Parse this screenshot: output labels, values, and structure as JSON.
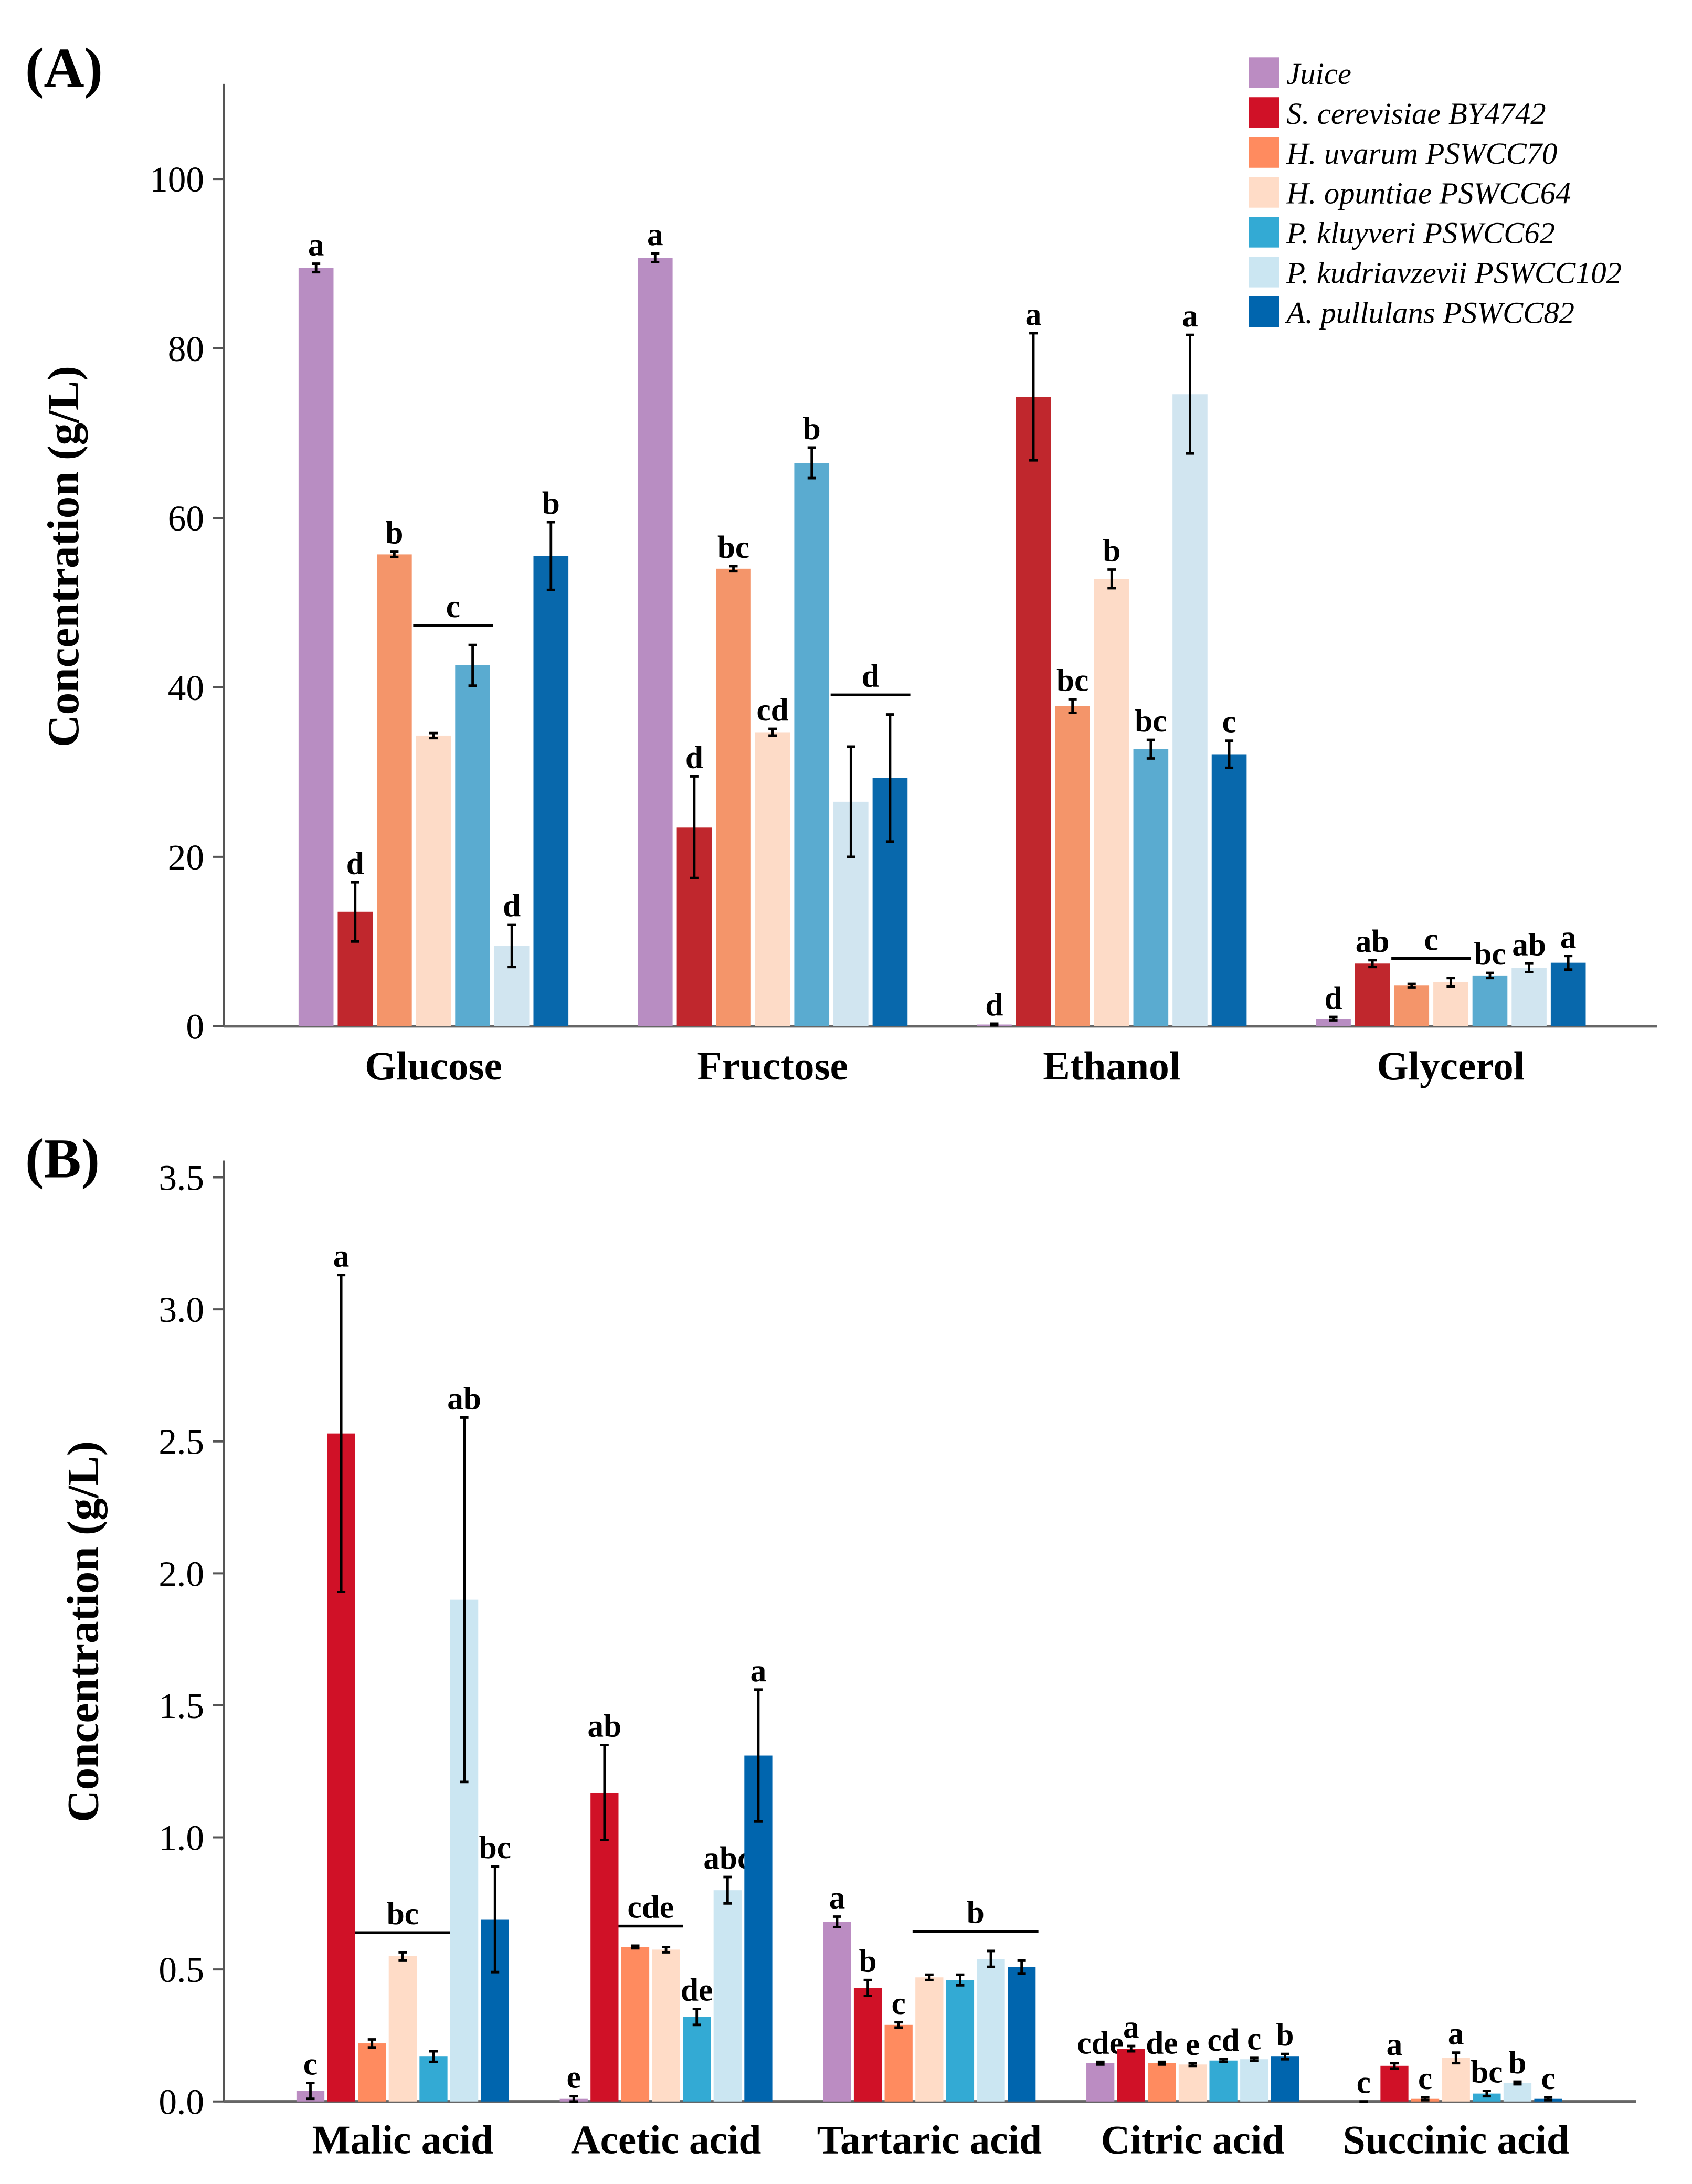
{
  "legend": [
    {
      "label": "Juice"
    },
    {
      "label": "S. cerevisiae BY4742"
    },
    {
      "label": "H. uvarum PSWCC70"
    },
    {
      "label": "H. opuntiae PSWCC64"
    },
    {
      "label": "P. kluyveri PSWCC62"
    },
    {
      "label": "P. kudriavzevii PSWCC102"
    },
    {
      "label": "A. pullulans PSWCC82"
    }
  ],
  "chart_data": [
    {
      "type": "bar",
      "panel_label": "(A)",
      "ylabel": "Concentration (g/L)",
      "xlabel": "",
      "ylim": [
        0,
        110
      ],
      "yticks": [
        "0",
        "20",
        "40",
        "60",
        "80",
        "100"
      ],
      "ytick_values": [
        0,
        20,
        40,
        60,
        80,
        100
      ],
      "grid": false,
      "legend_position": "top-right",
      "colors": [
        "#b88dc2",
        "#c0272d",
        "#f4956a",
        "#fddbc7",
        "#5aabd0",
        "#d1e5f0",
        "#0868ac"
      ],
      "categories": [
        "Glucose",
        "Fructose",
        "Ethanol",
        "Glycerol"
      ],
      "series_names": [
        "Juice",
        "S. cerevisiae BY4742",
        "H. uvarum PSWCC70",
        "H. opuntiae PSWCC64",
        "P. kluyveri PSWCC62",
        "P. kudriavzevii PSWCC102",
        "A. pullulans PSWCC82"
      ],
      "values": [
        [
          89.5,
          13.5,
          55.7,
          34.3,
          42.6,
          9.5,
          55.5
        ],
        [
          90.7,
          23.5,
          54.0,
          34.7,
          66.5,
          26.5,
          29.3
        ],
        [
          0.2,
          74.3,
          37.8,
          52.8,
          32.7,
          74.6,
          32.1
        ],
        [
          0.9,
          7.4,
          4.8,
          5.2,
          6.0,
          6.9,
          7.5
        ]
      ],
      "errors": [
        [
          0.5,
          3.5,
          0.3,
          0.3,
          2.4,
          2.5,
          4.0
        ],
        [
          0.5,
          6.0,
          0.3,
          0.4,
          1.8,
          6.5,
          7.5
        ],
        [
          0.1,
          7.5,
          0.8,
          1.1,
          1.1,
          7.0,
          1.6
        ],
        [
          0.2,
          0.4,
          0.2,
          0.5,
          0.3,
          0.5,
          0.8
        ]
      ],
      "letters": [
        [
          "a",
          "d",
          "b",
          "",
          "",
          "d",
          "b"
        ],
        [
          "a",
          "d",
          "bc",
          "cd",
          "b",
          "",
          ""
        ],
        [
          "d",
          "a",
          "bc",
          "b",
          "bc",
          "a",
          "c"
        ],
        [
          "d",
          "ab",
          "",
          "",
          "bc",
          "ab",
          "a"
        ]
      ],
      "group_letters": [
        [
          {
            "label": "c",
            "from": 3,
            "to": 4
          }
        ],
        [
          {
            "label": "d",
            "from": 5,
            "to": 6
          }
        ],
        [],
        [
          {
            "label": "c",
            "from": 2,
            "to": 3
          }
        ]
      ]
    },
    {
      "type": "bar",
      "panel_label": "(B)",
      "ylabel": "Concentration (g/L)",
      "xlabel": "",
      "ylim": [
        0,
        3.5
      ],
      "yticks": [
        "0.0",
        "0.5",
        "1.0",
        "1.5",
        "2.0",
        "2.5",
        "3.0",
        "3.5"
      ],
      "ytick_values": [
        0,
        0.5,
        1.0,
        1.5,
        2.0,
        2.5,
        3.0,
        3.5
      ],
      "grid": false,
      "colors": [
        "#bb8cc2",
        "#d01127",
        "#ff8b5f",
        "#ffdcc7",
        "#33aad4",
        "#cbe6f2",
        "#0065ae"
      ],
      "categories": [
        "Malic acid",
        "Acetic acid",
        "Tartaric acid",
        "Citric acid",
        "Succinic acid"
      ],
      "series_names": [
        "Juice",
        "S. cerevisiae BY4742",
        "H. uvarum PSWCC70",
        "H. opuntiae PSWCC64",
        "P. kluyveri PSWCC62",
        "P. kudriavzevii PSWCC102",
        "A. pullulans PSWCC82"
      ],
      "values": [
        [
          0.04,
          2.53,
          0.22,
          0.55,
          0.17,
          1.9,
          0.69
        ],
        [
          0.01,
          1.17,
          0.585,
          0.575,
          0.32,
          0.8,
          1.31
        ],
        [
          0.68,
          0.43,
          0.29,
          0.47,
          0.46,
          0.54,
          0.51
        ],
        [
          0.145,
          0.2,
          0.145,
          0.14,
          0.155,
          0.16,
          0.17
        ],
        [
          0.0,
          0.135,
          0.01,
          0.165,
          0.03,
          0.07,
          0.01
        ]
      ],
      "errors": [
        [
          0.03,
          0.6,
          0.015,
          0.015,
          0.02,
          0.69,
          0.2
        ],
        [
          0.01,
          0.18,
          0.005,
          0.01,
          0.03,
          0.05,
          0.25
        ],
        [
          0.02,
          0.03,
          0.01,
          0.01,
          0.02,
          0.03,
          0.025
        ],
        [
          0.005,
          0.01,
          0.005,
          0.005,
          0.005,
          0.005,
          0.01
        ],
        [
          0.0,
          0.01,
          0.005,
          0.02,
          0.01,
          0.005,
          0.005
        ]
      ],
      "letters": [
        [
          "c",
          "a",
          "",
          "",
          "",
          "ab",
          "bc"
        ],
        [
          "e",
          "ab",
          "",
          "",
          "de",
          "abc",
          "a"
        ],
        [
          "a",
          "b",
          "c",
          "",
          "",
          "",
          ""
        ],
        [
          "cde",
          "a",
          "de",
          "e",
          "cd",
          "c",
          "b"
        ],
        [
          "c",
          "a",
          "c",
          "a",
          "bc",
          "b",
          "c"
        ]
      ],
      "group_letters": [
        [
          {
            "label": "bc",
            "from": 2,
            "to": 4
          }
        ],
        [
          {
            "label": "cde",
            "from": 2,
            "to": 3
          }
        ],
        [
          {
            "label": "b",
            "from": 3,
            "to": 6
          }
        ],
        [],
        []
      ]
    }
  ]
}
